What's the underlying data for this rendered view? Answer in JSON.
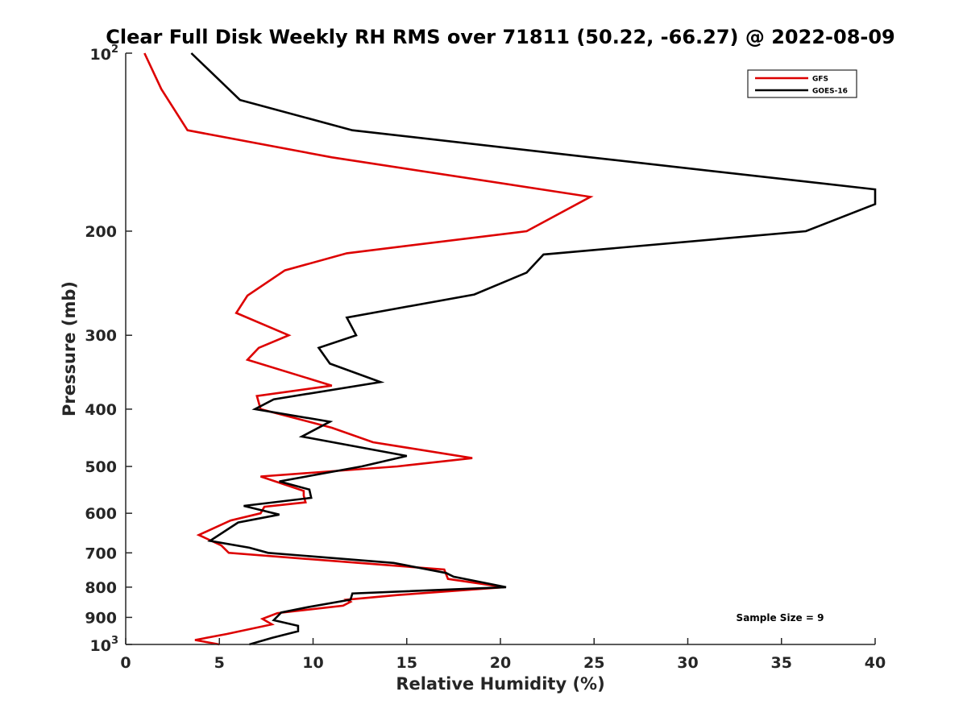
{
  "chart_data": {
    "type": "line",
    "title": "Clear Full Disk Weekly RH RMS over 71811 (50.22, -66.27) @ 2022-08-09",
    "xlabel": "Relative Humidity (%)",
    "ylabel": "Pressure (mb)",
    "xlim": [
      0,
      40
    ],
    "ylim": [
      100,
      1000
    ],
    "y_scale": "log",
    "y_reversed": true,
    "grid": false,
    "legend_position": "top-right",
    "x_ticks": [
      0,
      5,
      10,
      15,
      20,
      25,
      30,
      35,
      40
    ],
    "y_ticks": [
      {
        "value": 100,
        "label": "10",
        "sup": "2"
      },
      {
        "value": 200,
        "label": "200",
        "sup": ""
      },
      {
        "value": 300,
        "label": "300",
        "sup": ""
      },
      {
        "value": 400,
        "label": "400",
        "sup": ""
      },
      {
        "value": 500,
        "label": "500",
        "sup": ""
      },
      {
        "value": 600,
        "label": "600",
        "sup": ""
      },
      {
        "value": 700,
        "label": "700",
        "sup": ""
      },
      {
        "value": 800,
        "label": "800",
        "sup": ""
      },
      {
        "value": 900,
        "label": "900",
        "sup": ""
      },
      {
        "value": 1000,
        "label": "10",
        "sup": "3"
      }
    ],
    "series": [
      {
        "name": "GFS",
        "color": "#dd0000",
        "points": [
          [
            1.0,
            100
          ],
          [
            1.9,
            115
          ],
          [
            3.3,
            135
          ],
          [
            11.0,
            150
          ],
          [
            24.8,
            175
          ],
          [
            21.4,
            200
          ],
          [
            11.8,
            218
          ],
          [
            8.5,
            233
          ],
          [
            6.5,
            257
          ],
          [
            5.9,
            275
          ],
          [
            8.7,
            300
          ],
          [
            7.1,
            315
          ],
          [
            6.5,
            330
          ],
          [
            11.0,
            365
          ],
          [
            7.0,
            380
          ],
          [
            7.2,
            400
          ],
          [
            11.0,
            430
          ],
          [
            13.2,
            455
          ],
          [
            18.5,
            484
          ],
          [
            14.5,
            500
          ],
          [
            7.2,
            520
          ],
          [
            9.5,
            550
          ],
          [
            9.5,
            560
          ],
          [
            9.6,
            575
          ],
          [
            7.4,
            585
          ],
          [
            7.2,
            600
          ],
          [
            5.6,
            617
          ],
          [
            3.9,
            653
          ],
          [
            5.1,
            680
          ],
          [
            5.5,
            700
          ],
          [
            17.0,
            747
          ],
          [
            17.2,
            775
          ],
          [
            20.2,
            800
          ],
          [
            14.5,
            825
          ],
          [
            11.8,
            840
          ],
          [
            12.0,
            847
          ],
          [
            11.6,
            860
          ],
          [
            8.1,
            885
          ],
          [
            7.3,
            905
          ],
          [
            7.8,
            925
          ],
          [
            5.4,
            960
          ],
          [
            3.7,
            983
          ],
          [
            5.0,
            1000
          ]
        ]
      },
      {
        "name": "GOES-16",
        "color": "#000000",
        "points": [
          [
            3.5,
            100
          ],
          [
            6.1,
            120
          ],
          [
            12.1,
            135
          ],
          [
            24.8,
            150
          ],
          [
            40.0,
            170
          ],
          [
            40.0,
            180
          ],
          [
            36.3,
            200
          ],
          [
            22.3,
            219
          ],
          [
            21.4,
            235
          ],
          [
            18.6,
            256
          ],
          [
            11.8,
            280
          ],
          [
            12.3,
            300
          ],
          [
            10.3,
            315
          ],
          [
            10.9,
            335
          ],
          [
            13.6,
            360
          ],
          [
            7.9,
            385
          ],
          [
            6.9,
            400
          ],
          [
            10.9,
            420
          ],
          [
            9.4,
            445
          ],
          [
            15.0,
            480
          ],
          [
            12.6,
            500
          ],
          [
            8.2,
            530
          ],
          [
            9.8,
            547
          ],
          [
            9.9,
            565
          ],
          [
            6.3,
            583
          ],
          [
            8.2,
            603
          ],
          [
            6.0,
            622
          ],
          [
            4.5,
            668
          ],
          [
            6.6,
            686
          ],
          [
            7.6,
            700
          ],
          [
            14.3,
            728
          ],
          [
            17.1,
            757
          ],
          [
            17.5,
            768
          ],
          [
            20.3,
            800
          ],
          [
            12.1,
            820
          ],
          [
            12.0,
            840
          ],
          [
            9.7,
            865
          ],
          [
            8.3,
            883
          ],
          [
            7.9,
            910
          ],
          [
            9.2,
            930
          ],
          [
            9.2,
            950
          ],
          [
            7.8,
            975
          ],
          [
            6.6,
            1000
          ]
        ]
      }
    ],
    "annotation": "Sample Size = 9"
  }
}
